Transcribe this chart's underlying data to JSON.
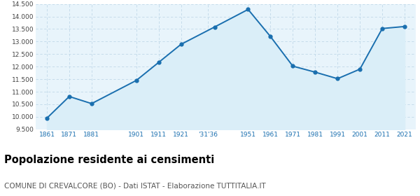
{
  "years": [
    1861,
    1871,
    1881,
    1901,
    1911,
    1921,
    1936,
    1951,
    1961,
    1971,
    1981,
    1991,
    2001,
    2011,
    2021
  ],
  "population": [
    9946,
    10810,
    10527,
    11450,
    12170,
    12890,
    13580,
    14280,
    13200,
    12020,
    11780,
    11520,
    11900,
    13520,
    13600
  ],
  "x_tick_labels": [
    "1861",
    "1871",
    "1881",
    "1901",
    "1911",
    "1921",
    "'31'36",
    "1951",
    "1961",
    "1971",
    "1981",
    "1991",
    "2001",
    "2011",
    "2021"
  ],
  "x_tick_positions": [
    1861,
    1871,
    1881,
    1901,
    1911,
    1921,
    1933,
    1951,
    1961,
    1971,
    1981,
    1991,
    2001,
    2011,
    2021
  ],
  "ylim": [
    9500,
    14500
  ],
  "yticks": [
    9500,
    10000,
    10500,
    11000,
    11500,
    12000,
    12500,
    13000,
    13500,
    14000,
    14500
  ],
  "line_color": "#1a6faf",
  "fill_color": "#daeef8",
  "marker_color": "#1a6faf",
  "grid_color": "#c0d8e8",
  "bg_color": "#e8f4fb",
  "title": "Popolazione residente ai censimenti",
  "subtitle": "COMUNE DI CREVALCORE (BO) - Dati ISTAT - Elaborazione TUTTITALIA.IT",
  "title_fontsize": 10.5,
  "subtitle_fontsize": 7.5,
  "tick_color": "#1a6faf"
}
